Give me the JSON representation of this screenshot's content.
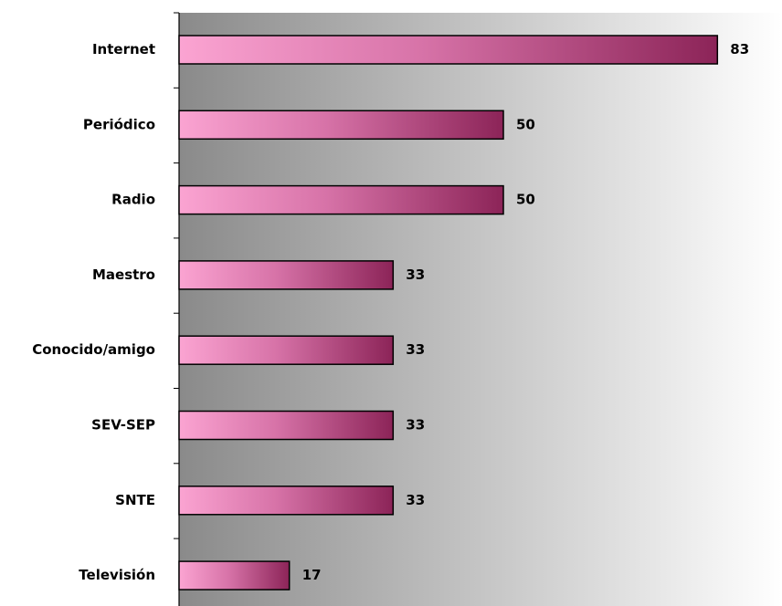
{
  "chart_data": {
    "type": "bar",
    "orientation": "horizontal",
    "categories": [
      "Internet",
      "Periódico",
      "Radio",
      "Maestro",
      "Conocido/amigo",
      "SEV-SEP",
      "SNTE",
      "Televisión"
    ],
    "values": [
      83,
      50,
      50,
      33,
      33,
      33,
      33,
      17
    ],
    "xlim": [
      0,
      100
    ],
    "grid": false,
    "legend": "none",
    "data_labels": true,
    "colors": {
      "bar_light": "#fba4d2",
      "bar_mid": "#d773a8",
      "bar_dark": "#8c2458",
      "bar_border": "#000000",
      "plot_bg_dark": "#8a8a8a",
      "plot_bg_light": "#ffffff",
      "axis": "#000000"
    }
  }
}
